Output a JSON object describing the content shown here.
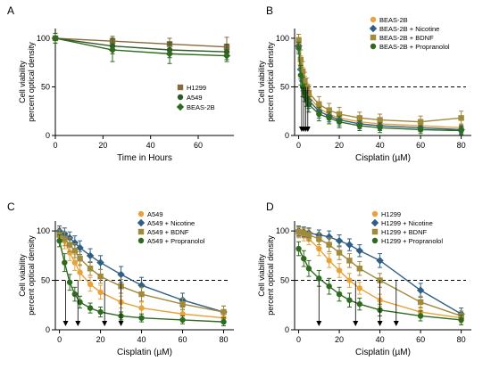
{
  "colors": {
    "orange": "#e8a23a",
    "blue": "#2f5f86",
    "olive": "#a08a3c",
    "green": "#2e6b1f",
    "brown": "#8a6a3a",
    "darkgreen": "#2f5a2a",
    "axis": "#000000"
  },
  "chart_data": [
    {
      "panel": "A",
      "type": "line",
      "xlabel": "Time in Hours",
      "ylabel": [
        "Cell viability",
        "percent optical density"
      ],
      "xlim": [
        0,
        75
      ],
      "ylim": [
        0,
        110
      ],
      "xticks": [
        0,
        20,
        40,
        60
      ],
      "yticks": [
        0,
        50,
        100
      ],
      "legend_position": "right",
      "series": [
        {
          "name": "H1299",
          "marker": "square",
          "color": "brown",
          "x": [
            0,
            24,
            48,
            72
          ],
          "y": [
            100,
            97,
            94,
            91
          ],
          "err": [
            5,
            5,
            6,
            10
          ]
        },
        {
          "name": "A549",
          "marker": "circle",
          "color": "darkgreen",
          "x": [
            0,
            24,
            48,
            72
          ],
          "y": [
            100,
            92,
            88,
            86
          ],
          "err": [
            5,
            8,
            8,
            8
          ]
        },
        {
          "name": "BEAS-2B",
          "marker": "diamond",
          "color": "green",
          "x": [
            0,
            24,
            48,
            72
          ],
          "y": [
            100,
            88,
            84,
            82
          ],
          "err": [
            5,
            12,
            10,
            6
          ]
        }
      ]
    },
    {
      "panel": "B",
      "type": "line",
      "xlabel": "Cisplatin (µM)",
      "ylabel": [
        "Cell viability",
        "percent optical density"
      ],
      "xlim": [
        -2,
        85
      ],
      "ylim": [
        0,
        110
      ],
      "xticks": [
        0,
        20,
        40,
        60,
        80
      ],
      "yticks": [
        0,
        50,
        100
      ],
      "ref_line": 50,
      "ic50_arrows": [
        1.5,
        2.5,
        3.5,
        4.5
      ],
      "legend_position": "top-right",
      "series": [
        {
          "name": "BEAS-2B",
          "marker": "circle",
          "color": "orange",
          "x": [
            0,
            1,
            2,
            3,
            4,
            5,
            10,
            15,
            20,
            30,
            40,
            60,
            80
          ],
          "y": [
            95,
            72,
            60,
            52,
            46,
            40,
            28,
            22,
            18,
            14,
            12,
            10,
            8
          ],
          "err": [
            6,
            10,
            10,
            9,
            8,
            8,
            7,
            6,
            6,
            5,
            5,
            5,
            4
          ]
        },
        {
          "name": "BEAS-2B + Nicotine",
          "marker": "diamond",
          "color": "blue",
          "x": [
            0,
            1,
            2,
            3,
            4,
            5,
            10,
            15,
            20,
            30,
            40,
            60,
            80
          ],
          "y": [
            92,
            68,
            56,
            48,
            42,
            36,
            25,
            20,
            16,
            12,
            10,
            8,
            6
          ],
          "err": [
            6,
            10,
            10,
            9,
            8,
            8,
            7,
            6,
            6,
            5,
            5,
            4,
            4
          ]
        },
        {
          "name": "BEAS-2B + BDNF",
          "marker": "square",
          "color": "olive",
          "x": [
            0,
            1,
            2,
            3,
            4,
            5,
            10,
            15,
            20,
            30,
            40,
            60,
            80
          ],
          "y": [
            98,
            78,
            66,
            56,
            50,
            44,
            32,
            26,
            22,
            18,
            16,
            14,
            18
          ],
          "err": [
            6,
            10,
            10,
            9,
            9,
            8,
            8,
            7,
            7,
            6,
            6,
            6,
            7
          ]
        },
        {
          "name": "BEAS-2B + Propranolol",
          "marker": "circle",
          "color": "green",
          "x": [
            0,
            1,
            2,
            3,
            4,
            5,
            10,
            15,
            20,
            30,
            40,
            60,
            80
          ],
          "y": [
            90,
            62,
            50,
            44,
            38,
            32,
            22,
            18,
            14,
            10,
            8,
            6,
            5
          ],
          "err": [
            6,
            10,
            10,
            9,
            8,
            8,
            7,
            6,
            6,
            5,
            5,
            4,
            4
          ]
        }
      ]
    },
    {
      "panel": "C",
      "type": "line",
      "xlabel": "Cisplatin (µM)",
      "ylabel": [
        "Cell viability",
        "percent optical density"
      ],
      "xlim": [
        -2,
        85
      ],
      "ylim": [
        0,
        110
      ],
      "xticks": [
        0,
        20,
        40,
        60,
        80
      ],
      "yticks": [
        0,
        50,
        100
      ],
      "ref_line": 50,
      "ic50_arrows": [
        3,
        9,
        22,
        30
      ],
      "legend_position": "top-right",
      "series": [
        {
          "name": "A549",
          "marker": "circle",
          "color": "orange",
          "x": [
            0,
            2.5,
            5,
            7.5,
            10,
            15,
            20,
            30,
            40,
            60,
            80
          ],
          "y": [
            98,
            90,
            78,
            68,
            58,
            46,
            38,
            28,
            22,
            16,
            12
          ],
          "err": [
            5,
            8,
            8,
            8,
            8,
            7,
            7,
            6,
            6,
            5,
            5
          ]
        },
        {
          "name": "A549 + Nicotine",
          "marker": "diamond",
          "color": "blue",
          "x": [
            0,
            2.5,
            5,
            7.5,
            10,
            15,
            20,
            30,
            40,
            60,
            80
          ],
          "y": [
            100,
            97,
            93,
            88,
            83,
            75,
            68,
            56,
            45,
            30,
            18
          ],
          "err": [
            5,
            6,
            6,
            7,
            7,
            7,
            7,
            8,
            8,
            7,
            6
          ]
        },
        {
          "name": "A549 + BDNF",
          "marker": "square",
          "color": "olive",
          "x": [
            0,
            2.5,
            5,
            7.5,
            10,
            15,
            20,
            30,
            40,
            60,
            80
          ],
          "y": [
            96,
            92,
            86,
            80,
            72,
            62,
            54,
            44,
            36,
            26,
            18
          ],
          "err": [
            5,
            7,
            7,
            7,
            7,
            7,
            7,
            7,
            7,
            6,
            6
          ]
        },
        {
          "name": "A549 + Propranolol",
          "marker": "circle",
          "color": "green",
          "x": [
            0,
            2.5,
            5,
            7.5,
            10,
            15,
            20,
            30,
            40,
            60,
            80
          ],
          "y": [
            90,
            68,
            48,
            36,
            28,
            22,
            18,
            14,
            12,
            10,
            8
          ],
          "err": [
            6,
            9,
            8,
            7,
            6,
            5,
            5,
            4,
            4,
            4,
            4
          ]
        }
      ]
    },
    {
      "panel": "D",
      "type": "line",
      "xlabel": "Cisplatin (µM)",
      "ylabel": [
        "Cell viability",
        "percent optical density"
      ],
      "xlim": [
        -2,
        85
      ],
      "ylim": [
        0,
        110
      ],
      "xticks": [
        0,
        20,
        40,
        60,
        80
      ],
      "yticks": [
        0,
        50,
        100
      ],
      "ref_line": 50,
      "ic50_arrows": [
        10,
        28,
        40,
        48
      ],
      "legend_position": "top-right",
      "series": [
        {
          "name": "H1299",
          "marker": "circle",
          "color": "orange",
          "x": [
            0,
            2.5,
            5,
            10,
            15,
            20,
            25,
            30,
            40,
            60,
            80
          ],
          "y": [
            98,
            96,
            92,
            82,
            70,
            60,
            50,
            42,
            30,
            18,
            12
          ],
          "err": [
            5,
            6,
            6,
            7,
            7,
            7,
            7,
            6,
            6,
            5,
            5
          ]
        },
        {
          "name": "H1299 + Nicotine",
          "marker": "diamond",
          "color": "blue",
          "x": [
            0,
            2.5,
            5,
            10,
            15,
            20,
            25,
            30,
            40,
            60,
            80
          ],
          "y": [
            100,
            99,
            98,
            96,
            94,
            90,
            86,
            80,
            70,
            40,
            16
          ],
          "err": [
            5,
            5,
            5,
            5,
            6,
            6,
            6,
            6,
            7,
            7,
            6
          ]
        },
        {
          "name": "H1299 + BDNF",
          "marker": "square",
          "color": "olive",
          "x": [
            0,
            2.5,
            5,
            10,
            15,
            20,
            25,
            30,
            40,
            60,
            80
          ],
          "y": [
            99,
            98,
            96,
            92,
            86,
            78,
            70,
            62,
            50,
            28,
            14
          ],
          "err": [
            5,
            5,
            6,
            6,
            7,
            7,
            7,
            7,
            7,
            6,
            5
          ]
        },
        {
          "name": "H1299 + Propranolol",
          "marker": "circle",
          "color": "green",
          "x": [
            0,
            2.5,
            5,
            10,
            15,
            20,
            25,
            30,
            40,
            60,
            80
          ],
          "y": [
            82,
            72,
            62,
            52,
            44,
            36,
            30,
            26,
            20,
            14,
            10
          ],
          "err": [
            7,
            8,
            8,
            8,
            8,
            7,
            7,
            6,
            6,
            5,
            5
          ]
        }
      ]
    }
  ]
}
